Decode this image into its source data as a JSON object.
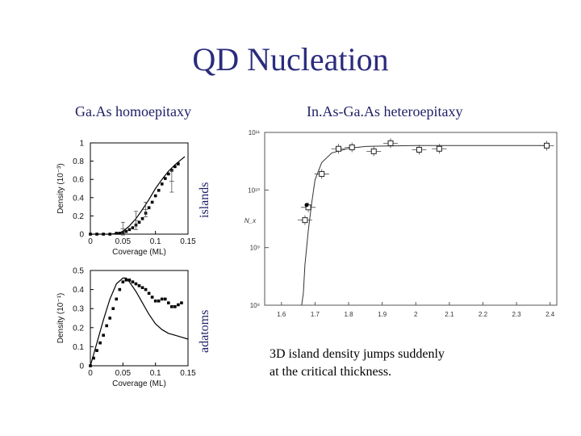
{
  "slide": {
    "title": "QD Nucleation",
    "left_subtitle": "Ga.As homoepitaxy",
    "right_subtitle": "In.As-Ga.As heteroepitaxy",
    "islands_label": "islands",
    "adatoms_label": "adatoms",
    "caption_line1": "3D island density jumps suddenly",
    "caption_line2": "at the critical thickness."
  },
  "chart_data": [
    {
      "type": "line",
      "xlabel": "Coverage (ML)",
      "ylabel": "Density (10⁻³)",
      "xlim": [
        0,
        0.15
      ],
      "ylim": [
        0,
        1
      ],
      "xticks": [
        "0",
        "0.05",
        "0.1",
        "0.15"
      ],
      "yticks": [
        "0",
        "0.2",
        "0.4",
        "0.6",
        "0.8",
        "1"
      ],
      "series": [
        {
          "name": "",
          "style": "line",
          "x": [
            0,
            0.03,
            0.045,
            0.05,
            0.06,
            0.07,
            0.08,
            0.09,
            0.1,
            0.11,
            0.12,
            0.13,
            0.14,
            0.145
          ],
          "y": [
            0,
            0,
            0.01,
            0.03,
            0.09,
            0.17,
            0.27,
            0.38,
            0.5,
            0.6,
            0.69,
            0.76,
            0.82,
            0.85
          ]
        },
        {
          "name": "",
          "style": "square-markers",
          "x": [
            0,
            0.01,
            0.02,
            0.03,
            0.04,
            0.045,
            0.05,
            0.055,
            0.06,
            0.065,
            0.07,
            0.075,
            0.08,
            0.085,
            0.09,
            0.095,
            0.1,
            0.105,
            0.11,
            0.115,
            0.12,
            0.125,
            0.13,
            0.135
          ],
          "y": [
            0,
            0,
            0,
            0,
            0.01,
            0.01,
            0.02,
            0.03,
            0.05,
            0.07,
            0.1,
            0.13,
            0.17,
            0.23,
            0.29,
            0.35,
            0.42,
            0.48,
            0.55,
            0.61,
            0.66,
            0.7,
            0.74,
            0.77
          ]
        },
        {
          "name": "",
          "style": "error-bars",
          "x": [
            0.05,
            0.07,
            0.085,
            0.125
          ],
          "y": [
            0.06,
            0.15,
            0.27,
            0.58
          ],
          "err": [
            0.07,
            0.1,
            0.08,
            0.12
          ]
        }
      ]
    },
    {
      "type": "line",
      "xlabel": "Coverage (ML)",
      "ylabel": "Density (10⁻¹)",
      "xlim": [
        0,
        0.15
      ],
      "ylim": [
        0,
        0.5
      ],
      "xticks": [
        "0",
        "0.05",
        "0.1",
        "0.15"
      ],
      "yticks": [
        "0",
        "0.1",
        "0.2",
        "0.3",
        "0.4",
        "0.5"
      ],
      "series": [
        {
          "name": "",
          "style": "line",
          "x": [
            0,
            0.01,
            0.02,
            0.03,
            0.04,
            0.05,
            0.055,
            0.06,
            0.07,
            0.08,
            0.09,
            0.1,
            0.11,
            0.12,
            0.13,
            0.14,
            0.15
          ],
          "y": [
            0,
            0.12,
            0.24,
            0.35,
            0.43,
            0.46,
            0.46,
            0.44,
            0.39,
            0.33,
            0.27,
            0.22,
            0.19,
            0.17,
            0.16,
            0.15,
            0.14
          ]
        },
        {
          "name": "",
          "style": "square-markers",
          "x": [
            0,
            0.005,
            0.01,
            0.015,
            0.02,
            0.025,
            0.03,
            0.035,
            0.04,
            0.045,
            0.05,
            0.055,
            0.06,
            0.065,
            0.07,
            0.075,
            0.08,
            0.085,
            0.09,
            0.095,
            0.1,
            0.105,
            0.11,
            0.115,
            0.12,
            0.125,
            0.13,
            0.135,
            0.14
          ],
          "y": [
            0,
            0.04,
            0.08,
            0.12,
            0.16,
            0.21,
            0.25,
            0.3,
            0.35,
            0.4,
            0.44,
            0.45,
            0.45,
            0.44,
            0.43,
            0.42,
            0.41,
            0.4,
            0.38,
            0.36,
            0.34,
            0.34,
            0.35,
            0.35,
            0.33,
            0.31,
            0.31,
            0.32,
            0.33
          ]
        }
      ]
    },
    {
      "type": "scatter",
      "xlabel": "",
      "ylabel": "N_x",
      "xlim": [
        1.55,
        2.42
      ],
      "ylim_log10": [
        8,
        11
      ],
      "xticks": [
        "1.6",
        "1.7",
        "1.8",
        "1.9",
        "2",
        "2.1",
        "2.2",
        "2.3",
        "2.4"
      ],
      "yticks": [
        "10⁸",
        "10⁹",
        "10¹⁰",
        "10¹¹"
      ],
      "series": [
        {
          "name": "",
          "style": "line",
          "x": [
            1.66,
            1.665,
            1.67,
            1.68,
            1.69,
            1.7,
            1.72,
            1.75,
            1.8,
            1.85,
            1.9,
            2.0,
            2.1,
            2.2,
            2.3,
            2.39
          ],
          "y": [
            100000000.0,
            160000000.0,
            500000000.0,
            2000000000.0,
            6000000000.0,
            15000000000.0,
            30000000000.0,
            44000000000.0,
            53000000000.0,
            57000000000.0,
            58000000000.0,
            59000000000.0,
            59000000000.0,
            59000000000.0,
            59000000000.0,
            59000000000.0
          ]
        },
        {
          "name": "",
          "style": "open-squares",
          "x": [
            1.67,
            1.68,
            1.72,
            1.77,
            1.81,
            1.875,
            1.925,
            2.01,
            2.07,
            2.39
          ],
          "y": [
            3000000000.0,
            5000000000.0,
            19000000000.0,
            52000000000.0,
            55000000000.0,
            47000000000.0,
            65000000000.0,
            50000000000.0,
            52000000000.0,
            59000000000.0
          ]
        },
        {
          "name": "",
          "style": "filled-circle",
          "x": [
            1.675
          ],
          "y": [
            5500000000.0
          ]
        }
      ]
    }
  ]
}
